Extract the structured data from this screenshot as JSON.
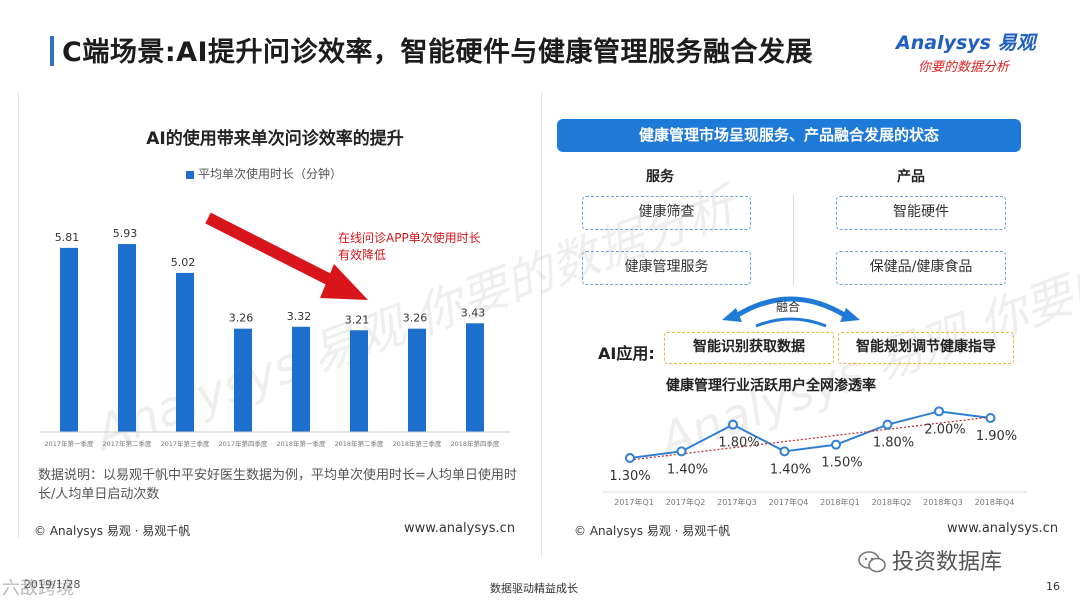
{
  "header": {
    "title": "C端场景:AI提升问诊效率，智能硬件与健康管理服务融合发展",
    "logo_main": "Analysys 易观",
    "logo_sub": "你要的数据分析"
  },
  "watermark": {
    "text": "Analysys 易观 你要的数据分析"
  },
  "left_panel": {
    "title": "AI的使用带来单次问诊效率的提升",
    "annotation": "在线问诊APP单次使用时长有效降低",
    "note": "数据说明：以易观千帆中平安好医生数据为例，平均单次使用时长=人均单日使用时长/人均单日启动次数",
    "copyright": "© Analysys 易观 · 易观千帆",
    "url": "www.analysys.cn"
  },
  "right_panel": {
    "banner": "健康管理市场呈现服务、产品融合发展的状态",
    "service_head": "服务",
    "product_head": "产品",
    "service_items": [
      "健康筛查",
      "健康管理服务"
    ],
    "product_items": [
      "智能硬件",
      "保健品/健康食品"
    ],
    "merge_label": "融合",
    "ai_label": "AI应用:",
    "ai_items": [
      "智能识别获取数据",
      "智能规划调节健康指导"
    ],
    "line_title": "健康管理行业活跃用户全网渗透率",
    "copyright": "© Analysys 易观 · 易观千帆",
    "url": "www.analysys.cn"
  },
  "footer": {
    "wechat": "投资数据库",
    "date": "2019/1/28",
    "tagline": "数据驱动精益成长",
    "page": "16",
    "corner": "六敌跨境"
  },
  "colors": {
    "bar": "#1d6fce",
    "line": "#2f7fd6",
    "trend": "#c0272d",
    "accent": "#1f79d6"
  },
  "chart_data": [
    {
      "type": "bar",
      "title": "AI的使用带来单次问诊效率的提升",
      "legend": "平均单次使用时长（分钟）",
      "categories": [
        "2017年第一季度",
        "2017年第二季度",
        "2017年第三季度",
        "2017年第四季度",
        "2018年第一季度",
        "2018年第二季度",
        "2018年第三季度",
        "2018年第四季度"
      ],
      "series": [
        {
          "name": "平均单次使用时长（分钟）",
          "values": [
            5.81,
            5.93,
            5.02,
            3.26,
            3.32,
            3.21,
            3.26,
            3.43
          ]
        }
      ],
      "ylim": [
        0,
        6.5
      ]
    },
    {
      "type": "line",
      "title": "健康管理行业活跃用户全网渗透率",
      "categories": [
        "2017年Q1",
        "2017年Q2",
        "2017年Q3",
        "2017年Q4",
        "2018年Q1",
        "2018年Q2",
        "2018年Q3",
        "2018年Q4"
      ],
      "series": [
        {
          "values": [
            1.3,
            1.4,
            1.8,
            1.4,
            1.5,
            1.8,
            2.0,
            1.9
          ]
        }
      ],
      "data_labels": [
        "1.30%",
        "1.40%",
        "1.80%",
        "1.40%",
        "1.50%",
        "1.80%",
        "2.00%",
        "1.90%"
      ],
      "ylim": [
        1.0,
        2.2
      ],
      "trendline": true
    }
  ]
}
